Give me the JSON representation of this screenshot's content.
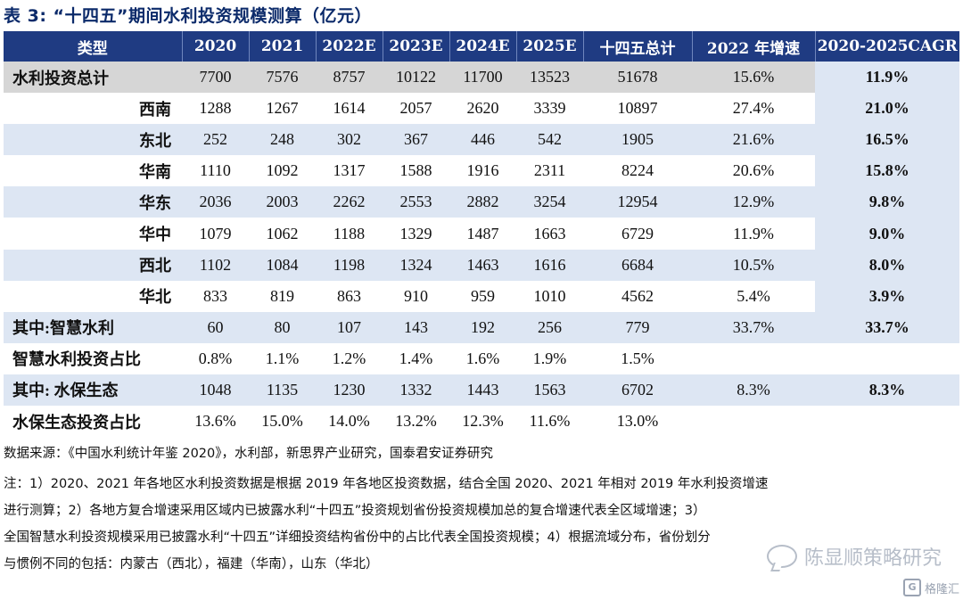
{
  "title": "表 3: “十四五”期间水利投资规模测算（亿元）",
  "table": {
    "headers": [
      "类型",
      "2020",
      "2021",
      "2022E",
      "2023E",
      "2024E",
      "2025E",
      "十四五总计",
      "2022 年增速",
      "2020-2025CAGR"
    ],
    "rows": [
      {
        "label": "水利投资总计",
        "values": [
          "7700",
          "7576",
          "8757",
          "10122",
          "11700",
          "13523",
          "51678",
          "15.6%",
          "11.9%"
        ]
      },
      {
        "label": "西南",
        "values": [
          "1288",
          "1267",
          "1614",
          "2057",
          "2620",
          "3339",
          "10897",
          "27.4%",
          "21.0%"
        ]
      },
      {
        "label": "东北",
        "values": [
          "252",
          "248",
          "302",
          "367",
          "446",
          "542",
          "1905",
          "21.6%",
          "16.5%"
        ]
      },
      {
        "label": "华南",
        "values": [
          "1110",
          "1092",
          "1317",
          "1588",
          "1916",
          "2311",
          "8224",
          "20.6%",
          "15.8%"
        ]
      },
      {
        "label": "华东",
        "values": [
          "2036",
          "2003",
          "2262",
          "2553",
          "2882",
          "3254",
          "12954",
          "12.9%",
          "9.8%"
        ]
      },
      {
        "label": "华中",
        "values": [
          "1079",
          "1062",
          "1188",
          "1329",
          "1487",
          "1663",
          "6729",
          "11.9%",
          "9.0%"
        ]
      },
      {
        "label": "西北",
        "values": [
          "1102",
          "1084",
          "1198",
          "1324",
          "1463",
          "1616",
          "6684",
          "10.5%",
          "8.0%"
        ]
      },
      {
        "label": "华北",
        "values": [
          "833",
          "819",
          "863",
          "910",
          "959",
          "1010",
          "4562",
          "5.4%",
          "3.9%"
        ]
      },
      {
        "label": "其中:智慧水利",
        "values": [
          "60",
          "80",
          "107",
          "143",
          "192",
          "256",
          "779",
          "33.7%",
          "33.7%"
        ]
      },
      {
        "label": "智慧水利投资占比",
        "values": [
          "0.8%",
          "1.1%",
          "1.2%",
          "1.4%",
          "1.6%",
          "1.9%",
          "1.5%",
          "",
          ""
        ]
      },
      {
        "label": "其中: 水保生态",
        "values": [
          "1048",
          "1135",
          "1230",
          "1332",
          "1443",
          "1563",
          "6702",
          "8.3%",
          "8.3%"
        ]
      },
      {
        "label": "水保生态投资占比",
        "values": [
          "13.6%",
          "15.0%",
          "14.0%",
          "13.2%",
          "12.3%",
          "11.6%",
          "13.0%",
          "",
          ""
        ]
      }
    ]
  },
  "source": "数据来源：《中国水利统计年鉴 2020》，水利部，新思界产业研究，国泰君安证券研究",
  "notes": [
    "注：1）2020、2021 年各地区水利投资数据是根据 2019 年各地区投资数据，结合全国 2020、2021 年相对 2019 年水利投资增速",
    "进行测算；2）各地方复合增速采用区域内已披露水利“十四五”投资规划省份投资规模加总的复合增速代表全区域增速；3）",
    "全国智慧水利投资规模采用已披露水利“十四五”详细投资结构省份中的占比代表全国投资规模；4）根据流域分布，省份划分",
    "与惯例不同的包括：内蒙古（西北），福建（华南），山东（华北）"
  ],
  "watermark": "陈显顺策略研究",
  "logo": "格隆汇",
  "logo_mark": "G"
}
